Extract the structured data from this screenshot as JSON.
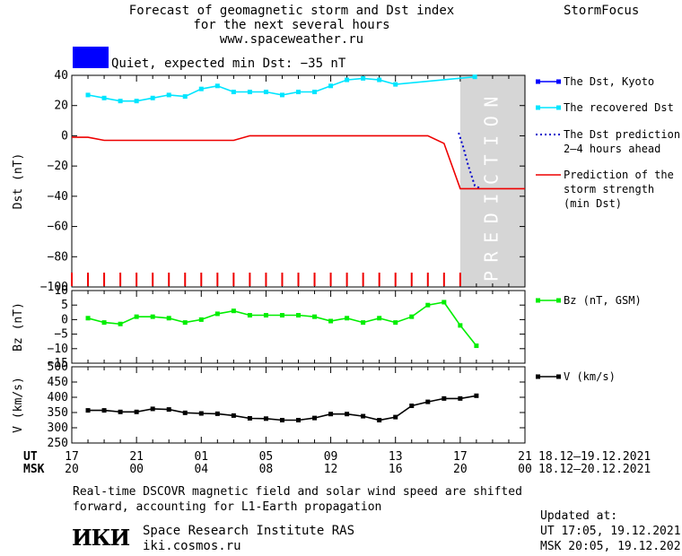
{
  "header": {
    "title_line1": "Forecast of geomagnetic storm and Dst index",
    "title_line2": "for the next several hours",
    "title_line3": "www.spaceweather.ru",
    "brand": "StormFocus"
  },
  "status": {
    "text": "Quiet, expected min Dst: −35 nT",
    "color": "#0000ff"
  },
  "colors": {
    "kyoto": "#0000ff",
    "recovered": "#00e5ff",
    "prediction": "#0000cc",
    "storm": "#ee0000",
    "bz": "#00ee00",
    "v": "#000000",
    "forecast_band": "#d6d6d6"
  },
  "chart_data": [
    {
      "type": "line",
      "panel": "dst",
      "ylabel": "Dst (nT)",
      "ylim": [
        -100,
        40
      ],
      "yticks": [
        40,
        20,
        0,
        -20,
        -40,
        -60,
        -80,
        -100
      ],
      "xlim": [
        17,
        45
      ],
      "band_label": "PREDICTION",
      "band_start": 41,
      "series": [
        {
          "name": "The Dst, Kyoto",
          "color_key": "kyoto",
          "marker": "square",
          "x": [],
          "y": []
        },
        {
          "name": "The recovered Dst",
          "color_key": "recovered",
          "marker": "square",
          "x": [
            18,
            19,
            20,
            21,
            22,
            23,
            24,
            25,
            26,
            27,
            28,
            29,
            30,
            31,
            32,
            33,
            34,
            35,
            36,
            37,
            41.9
          ],
          "y": [
            27,
            25,
            23,
            23,
            25,
            27,
            26,
            31,
            33,
            29,
            29,
            29,
            27,
            29,
            29,
            33,
            37,
            38,
            37,
            34,
            39
          ]
        },
        {
          "name": "The Dst prediction\n2–4 hours ahead",
          "color_key": "prediction",
          "style": "dotted",
          "x": [
            40.9,
            41.2,
            41.5,
            41.9,
            42.3
          ],
          "y": [
            2,
            -8,
            -20,
            -33,
            -35
          ]
        },
        {
          "name": "Prediction of the\nstorm strength\n(min Dst)",
          "color_key": "storm",
          "style": "solid",
          "x": [
            17,
            18,
            19,
            20,
            27,
            28,
            39,
            40,
            41,
            45
          ],
          "y": [
            -1,
            -1,
            -3,
            -3,
            -3,
            0,
            0,
            -5,
            -35,
            -35
          ]
        }
      ],
      "tick_markers_x": [
        17,
        18,
        19,
        20,
        21,
        22,
        23,
        24,
        25,
        26,
        27,
        28,
        29,
        30,
        31,
        32,
        33,
        34,
        35,
        36,
        37,
        38,
        39,
        40,
        41
      ]
    },
    {
      "type": "line",
      "panel": "bz",
      "ylabel": "Bz (nT)",
      "ylim": [
        -15,
        10
      ],
      "yticks": [
        10,
        5,
        0,
        -5,
        -10,
        -15
      ],
      "xlim": [
        17,
        45
      ],
      "series": [
        {
          "name": "Bz (nT, GSM)",
          "color_key": "bz",
          "marker": "square",
          "x": [
            18,
            19,
            20,
            21,
            22,
            23,
            24,
            25,
            26,
            27,
            28,
            29,
            30,
            31,
            32,
            33,
            34,
            35,
            36,
            37,
            38,
            39,
            40,
            41,
            42
          ],
          "y": [
            0.5,
            -1,
            -1.5,
            1,
            1,
            0.5,
            -1,
            0,
            2,
            3,
            1.5,
            1.5,
            1.5,
            1.5,
            1,
            -0.5,
            0.5,
            -1,
            0.5,
            -1,
            1,
            5,
            6,
            -2,
            -9
          ]
        }
      ]
    },
    {
      "type": "line",
      "panel": "v",
      "ylabel": "V (km/s)",
      "ylim": [
        250,
        500
      ],
      "yticks": [
        500,
        450,
        400,
        350,
        300,
        250
      ],
      "xlim": [
        17,
        45
      ],
      "series": [
        {
          "name": "V (km/s)",
          "color_key": "v",
          "marker": "square",
          "x": [
            18,
            19,
            20,
            21,
            22,
            23,
            24,
            25,
            26,
            27,
            28,
            29,
            30,
            31,
            32,
            33,
            34,
            35,
            36,
            37,
            38,
            39,
            40,
            41,
            42
          ],
          "y": [
            357,
            357,
            352,
            352,
            362,
            360,
            349,
            347,
            346,
            340,
            331,
            330,
            325,
            325,
            332,
            345,
            345,
            338,
            325,
            335,
            372,
            385,
            396,
            396,
            405
          ]
        }
      ]
    }
  ],
  "time_axis": {
    "ut_label": "UT",
    "msk_label": "MSK",
    "ut_ticks": [
      "17",
      "21",
      "01",
      "05",
      "09",
      "13",
      "17",
      "21"
    ],
    "msk_ticks": [
      "20",
      "00",
      "04",
      "08",
      "12",
      "16",
      "20",
      "00"
    ],
    "ut_range": "18.12–19.12.2021",
    "msk_range": "18.12–20.12.2021"
  },
  "footer": {
    "note_line1": "Real-time DSCOVR magnetic field and solar wind speed are shifted",
    "note_line2": "forward, accounting for L1-Earth propagation",
    "logo_text": "ИКИ",
    "org_name": "Space Research Institute RAS",
    "org_url": "iki.cosmos.ru",
    "updated_title": "Updated at:",
    "updated_ut": "UT   17:05, 19.12.2021",
    "updated_msk": "MSK 20:05, 19.12.2021"
  }
}
